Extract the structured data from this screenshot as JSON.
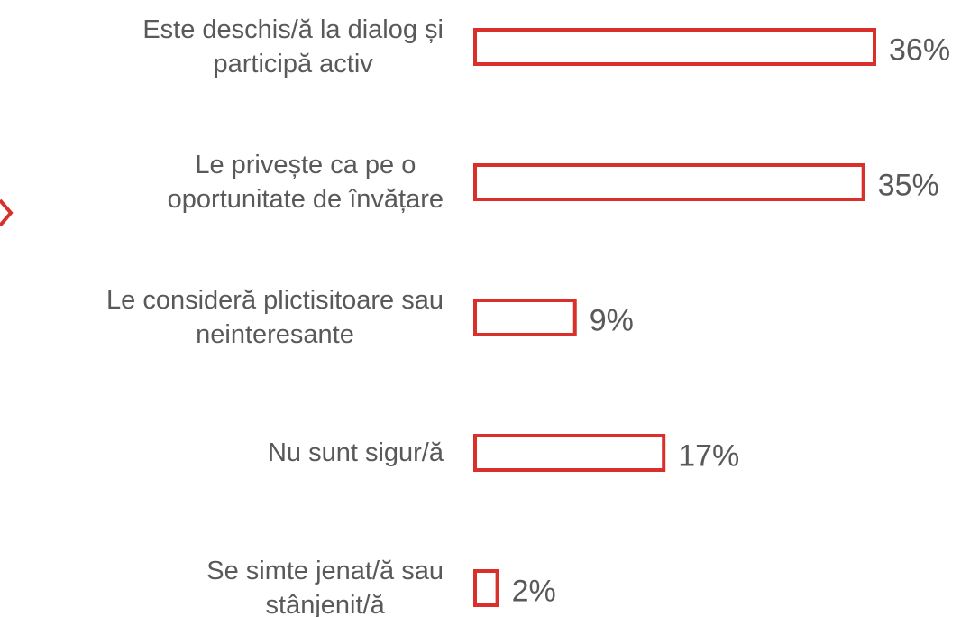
{
  "chart_data": {
    "type": "bar",
    "categories": [
      "Este deschis/ă la dialog și\nparticipă activ",
      "Le privește ca pe o\noportunitate de învățare",
      "Le consideră plictisitoare sau\nneinteresante",
      "Nu sunt sigur/ă",
      "Se simte jenat/ă sau\nstânjenit/ă"
    ],
    "values": [
      36,
      35,
      9,
      17,
      2
    ],
    "value_labels": [
      "36%",
      "35%",
      "9%",
      "17%",
      "2%"
    ],
    "color": "#d9302c"
  }
}
